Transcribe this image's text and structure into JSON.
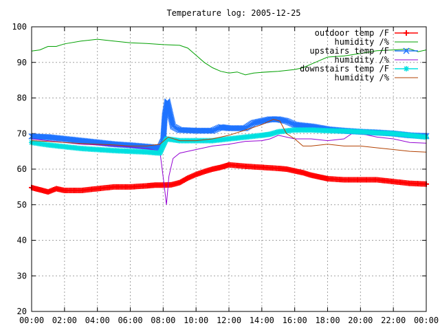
{
  "chart_data": {
    "type": "line",
    "title": "Temperature log: 2005-12-25",
    "xlabel": "",
    "ylabel": "",
    "xlim": [
      0,
      24
    ],
    "ylim": [
      20,
      100
    ],
    "x_ticks": [
      "00:00",
      "02:00",
      "04:00",
      "06:00",
      "08:00",
      "10:00",
      "12:00",
      "14:00",
      "16:00",
      "18:00",
      "20:00",
      "22:00",
      "00:00"
    ],
    "y_ticks": [
      "20",
      "30",
      "40",
      "50",
      "60",
      "70",
      "80",
      "90",
      "100"
    ],
    "grid": true,
    "legend_position": "top-right",
    "series": [
      {
        "name": "outdoor temp /F",
        "color": "#ff0000",
        "marker": "plus",
        "points": [
          [
            0,
            54.8
          ],
          [
            0.5,
            54.2
          ],
          [
            1,
            53.6
          ],
          [
            1.5,
            54.5
          ],
          [
            2,
            54.0
          ],
          [
            3,
            54.0
          ],
          [
            4,
            54.5
          ],
          [
            5,
            55.0
          ],
          [
            6,
            55.0
          ],
          [
            7,
            55.3
          ],
          [
            7.5,
            55.5
          ],
          [
            8,
            55.5
          ],
          [
            8.5,
            55.6
          ],
          [
            9,
            56.2
          ],
          [
            9.5,
            57.5
          ],
          [
            10,
            58.5
          ],
          [
            10.5,
            59.3
          ],
          [
            11,
            60.0
          ],
          [
            11.5,
            60.5
          ],
          [
            12,
            61.2
          ],
          [
            13,
            60.8
          ],
          [
            14,
            60.5
          ],
          [
            15,
            60.2
          ],
          [
            15.5,
            60.0
          ],
          [
            16,
            59.5
          ],
          [
            16.5,
            59.0
          ],
          [
            17,
            58.3
          ],
          [
            17.5,
            57.8
          ],
          [
            18,
            57.3
          ],
          [
            19,
            57.0
          ],
          [
            20,
            57.0
          ],
          [
            21,
            57.0
          ],
          [
            22,
            56.5
          ],
          [
            23,
            56.0
          ],
          [
            24,
            55.8
          ]
        ]
      },
      {
        "name": "humidity /%",
        "color": "#00a000",
        "marker": "none",
        "points": [
          [
            0,
            93.2
          ],
          [
            0.5,
            93.5
          ],
          [
            1,
            94.5
          ],
          [
            1.5,
            94.5
          ],
          [
            2,
            95.2
          ],
          [
            3,
            96.0
          ],
          [
            4,
            96.5
          ],
          [
            5,
            96.0
          ],
          [
            6,
            95.5
          ],
          [
            7,
            95.3
          ],
          [
            8,
            95.0
          ],
          [
            9,
            94.8
          ],
          [
            9.5,
            94.0
          ],
          [
            10,
            92.0
          ],
          [
            10.5,
            90.0
          ],
          [
            11,
            88.5
          ],
          [
            11.5,
            87.5
          ],
          [
            12,
            87.0
          ],
          [
            12.5,
            87.3
          ],
          [
            13,
            86.5
          ],
          [
            13.5,
            87.0
          ],
          [
            14,
            87.2
          ],
          [
            15,
            87.5
          ],
          [
            16,
            88.0
          ],
          [
            16.5,
            88.5
          ],
          [
            17,
            89.5
          ],
          [
            17.5,
            90.5
          ],
          [
            18,
            91.5
          ],
          [
            19,
            91.8
          ],
          [
            20,
            92.5
          ],
          [
            21,
            93.3
          ],
          [
            22,
            93.5
          ],
          [
            23,
            93.8
          ],
          [
            23.5,
            93.0
          ],
          [
            24,
            93.5
          ]
        ]
      },
      {
        "name": "upstairs temp /F",
        "color": "#1e73ff",
        "marker": "x",
        "points": [
          [
            0,
            69.2
          ],
          [
            1,
            69.0
          ],
          [
            2,
            68.5
          ],
          [
            3,
            68.0
          ],
          [
            4,
            67.5
          ],
          [
            5,
            67.0
          ],
          [
            6,
            66.7
          ],
          [
            7,
            66.3
          ],
          [
            7.8,
            66.0
          ],
          [
            8,
            68.0
          ],
          [
            8.1,
            75.0
          ],
          [
            8.25,
            79.0
          ],
          [
            8.4,
            76.0
          ],
          [
            8.6,
            72.0
          ],
          [
            9,
            71.0
          ],
          [
            10,
            70.8
          ],
          [
            11,
            70.8
          ],
          [
            11.5,
            71.8
          ],
          [
            12,
            71.5
          ],
          [
            13,
            71.5
          ],
          [
            13.5,
            73.0
          ],
          [
            14,
            73.5
          ],
          [
            14.5,
            74.0
          ],
          [
            15,
            74.0
          ],
          [
            15.5,
            73.5
          ],
          [
            16,
            72.5
          ],
          [
            17,
            72.0
          ],
          [
            18,
            71.2
          ],
          [
            19,
            70.8
          ],
          [
            20,
            70.5
          ],
          [
            21,
            70.3
          ],
          [
            22,
            70.0
          ],
          [
            23,
            69.5
          ],
          [
            24,
            69.3
          ]
        ]
      },
      {
        "name": "humidity /%",
        "color": "#9400d3",
        "marker": "none",
        "points": [
          [
            0,
            68.5
          ],
          [
            1,
            68.0
          ],
          [
            2,
            67.5
          ],
          [
            3,
            67.0
          ],
          [
            4,
            66.8
          ],
          [
            5,
            66.5
          ],
          [
            6,
            66.2
          ],
          [
            7,
            65.8
          ],
          [
            7.8,
            65.0
          ],
          [
            8.05,
            56.0
          ],
          [
            8.2,
            50.0
          ],
          [
            8.35,
            58.0
          ],
          [
            8.6,
            63.0
          ],
          [
            9,
            64.5
          ],
          [
            10,
            65.5
          ],
          [
            11,
            66.5
          ],
          [
            12,
            67.0
          ],
          [
            13,
            67.8
          ],
          [
            14,
            68.0
          ],
          [
            14.5,
            68.5
          ],
          [
            15,
            69.5
          ],
          [
            16,
            68.5
          ],
          [
            17,
            68.5
          ],
          [
            18,
            68.0
          ],
          [
            19,
            68.5
          ],
          [
            19.8,
            71.0
          ],
          [
            20,
            70.0
          ],
          [
            21,
            69.0
          ],
          [
            22,
            68.5
          ],
          [
            23,
            67.5
          ],
          [
            24,
            67.3
          ]
        ]
      },
      {
        "name": "downstairs temp /F",
        "color": "#00e0e0",
        "marker": "star",
        "points": [
          [
            0,
            67.5
          ],
          [
            1,
            66.8
          ],
          [
            2,
            66.3
          ],
          [
            3,
            65.8
          ],
          [
            4,
            65.5
          ],
          [
            5,
            65.2
          ],
          [
            6,
            65.0
          ],
          [
            7,
            64.8
          ],
          [
            7.8,
            64.5
          ],
          [
            8.2,
            68.5
          ],
          [
            9,
            68.0
          ],
          [
            10,
            68.0
          ],
          [
            11,
            68.0
          ],
          [
            12,
            68.5
          ],
          [
            13,
            69.0
          ],
          [
            14,
            69.5
          ],
          [
            14.5,
            69.8
          ],
          [
            15,
            70.5
          ],
          [
            16,
            71.0
          ],
          [
            17,
            71.0
          ],
          [
            18,
            70.8
          ],
          [
            19,
            70.7
          ],
          [
            20,
            70.5
          ],
          [
            21,
            70.2
          ],
          [
            22,
            70.0
          ],
          [
            23,
            69.5
          ],
          [
            24,
            69.0
          ]
        ]
      },
      {
        "name": "humidity /%",
        "color": "#b24000",
        "marker": "none",
        "points": [
          [
            0,
            68.0
          ],
          [
            1,
            67.8
          ],
          [
            2,
            67.5
          ],
          [
            3,
            67.2
          ],
          [
            4,
            67.0
          ],
          [
            5,
            66.8
          ],
          [
            6,
            66.5
          ],
          [
            7,
            66.5
          ],
          [
            7.8,
            67.0
          ],
          [
            8.3,
            69.0
          ],
          [
            9,
            68.0
          ],
          [
            10,
            68.0
          ],
          [
            11,
            68.5
          ],
          [
            12,
            69.5
          ],
          [
            13,
            71.0
          ],
          [
            14,
            72.5
          ],
          [
            14.7,
            74.0
          ],
          [
            15.1,
            73.5
          ],
          [
            15.5,
            70.0
          ],
          [
            16,
            68.5
          ],
          [
            16.5,
            66.5
          ],
          [
            17,
            66.5
          ],
          [
            18,
            67.0
          ],
          [
            19,
            66.5
          ],
          [
            20,
            66.5
          ],
          [
            21,
            66.0
          ],
          [
            22,
            65.5
          ],
          [
            23,
            65.0
          ],
          [
            24,
            64.8
          ]
        ]
      }
    ]
  }
}
